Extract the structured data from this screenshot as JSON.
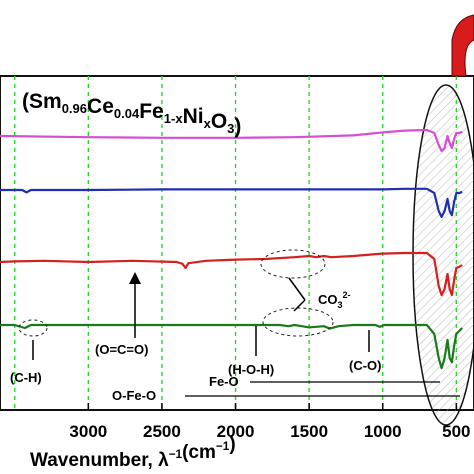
{
  "chart_data": {
    "type": "line",
    "title_parts": [
      {
        "t": "(Sm",
        "s": "n"
      },
      {
        "t": "0.96",
        "s": "sub"
      },
      {
        "t": "Ce",
        "s": "n"
      },
      {
        "t": "0.04",
        "s": "sub"
      },
      {
        "t": "Fe",
        "s": "n"
      },
      {
        "t": "1-x",
        "s": "sub"
      },
      {
        "t": "Ni",
        "s": "n"
      },
      {
        "t": "x",
        "s": "sub"
      },
      {
        "t": "O",
        "s": "n"
      },
      {
        "t": "3",
        "s": "sub"
      },
      {
        "t": ")",
        "s": "n"
      }
    ],
    "xlabel_parts": [
      {
        "t": "Wavenumber, λ",
        "s": "n"
      },
      {
        "t": "−1",
        "s": "sup"
      },
      {
        "t": "(cm",
        "s": "n"
      },
      {
        "t": "−1",
        "s": "sup"
      },
      {
        "t": ")",
        "s": "n"
      }
    ],
    "x_ticks": [
      3000,
      2500,
      2000,
      1500,
      1000,
      500
    ],
    "x_tick_labels": [
      "3000",
      "2500",
      "2000",
      "1500",
      "1000",
      "500"
    ],
    "xlim": [
      3600,
      380
    ],
    "gridlines_x": [
      3500,
      3000,
      2500,
      2000,
      1500,
      1000,
      500
    ],
    "grid": "vertical dashed green",
    "series": [
      {
        "color": "#d54ed5",
        "baseline": 0.12,
        "points": [
          [
            3600,
            0.1
          ],
          [
            3000,
            0.12
          ],
          [
            2500,
            0.13
          ],
          [
            2000,
            0.13
          ],
          [
            1600,
            0.12
          ],
          [
            1200,
            0.09
          ],
          [
            1000,
            0.04
          ],
          [
            850,
            0.01
          ],
          [
            700,
            0.0
          ],
          [
            650,
            0.05
          ],
          [
            620,
            0.25
          ],
          [
            600,
            0.35
          ],
          [
            580,
            0.3
          ],
          [
            560,
            0.1
          ],
          [
            545,
            0.22
          ],
          [
            530,
            0.3
          ],
          [
            515,
            0.15
          ],
          [
            500,
            0.05
          ],
          [
            480,
            0.05
          ],
          [
            460,
            0.03
          ]
        ]
      },
      {
        "color": "#1e2fb0",
        "baseline": 0.0,
        "points": [
          [
            3600,
            0.0
          ],
          [
            3450,
            0.0
          ],
          [
            3420,
            0.04
          ],
          [
            3390,
            0.0
          ],
          [
            3000,
            0.0
          ],
          [
            2500,
            -0.01
          ],
          [
            2000,
            -0.01
          ],
          [
            1500,
            -0.01
          ],
          [
            1000,
            -0.01
          ],
          [
            850,
            -0.02
          ],
          [
            700,
            -0.02
          ],
          [
            650,
            0.05
          ],
          [
            620,
            0.35
          ],
          [
            600,
            0.45
          ],
          [
            580,
            0.35
          ],
          [
            560,
            0.15
          ],
          [
            545,
            0.35
          ],
          [
            530,
            0.42
          ],
          [
            515,
            0.2
          ],
          [
            500,
            0.05
          ],
          [
            480,
            0.05
          ],
          [
            460,
            0.03
          ]
        ]
      },
      {
        "color": "#d62020",
        "baseline": 0.0,
        "points": [
          [
            3600,
            0.0
          ],
          [
            3500,
            -0.01
          ],
          [
            3300,
            -0.02
          ],
          [
            3000,
            0.0
          ],
          [
            2700,
            -0.02
          ],
          [
            2400,
            0.0
          ],
          [
            2360,
            0.03
          ],
          [
            2340,
            0.1
          ],
          [
            2320,
            0.02
          ],
          [
            2200,
            -0.02
          ],
          [
            2000,
            -0.04
          ],
          [
            1800,
            -0.05
          ],
          [
            1600,
            -0.08
          ],
          [
            1500,
            -0.1
          ],
          [
            1450,
            -0.08
          ],
          [
            1400,
            -0.1
          ],
          [
            1350,
            -0.08
          ],
          [
            1200,
            -0.1
          ],
          [
            1000,
            -0.14
          ],
          [
            850,
            -0.15
          ],
          [
            700,
            -0.15
          ],
          [
            650,
            -0.05
          ],
          [
            620,
            0.4
          ],
          [
            600,
            0.55
          ],
          [
            580,
            0.45
          ],
          [
            560,
            0.2
          ],
          [
            545,
            0.45
          ],
          [
            530,
            0.55
          ],
          [
            515,
            0.3
          ],
          [
            500,
            0.1
          ],
          [
            480,
            0.08
          ],
          [
            460,
            0.05
          ]
        ]
      },
      {
        "color": "#1a7a1a",
        "baseline": 0.0,
        "points": [
          [
            3600,
            0.0
          ],
          [
            3500,
            0.0
          ],
          [
            3430,
            0.05
          ],
          [
            3390,
            0.0
          ],
          [
            3000,
            0.0
          ],
          [
            2500,
            0.0
          ],
          [
            2000,
            0.0
          ],
          [
            1700,
            0.0
          ],
          [
            1640,
            0.02
          ],
          [
            1600,
            0.0
          ],
          [
            1550,
            0.02
          ],
          [
            1500,
            0.04
          ],
          [
            1450,
            0.03
          ],
          [
            1400,
            0.02
          ],
          [
            1360,
            0.06
          ],
          [
            1300,
            0.02
          ],
          [
            1200,
            0.0
          ],
          [
            1050,
            0.0
          ],
          [
            1020,
            0.03
          ],
          [
            990,
            0.0
          ],
          [
            850,
            0.0
          ],
          [
            700,
            0.0
          ],
          [
            650,
            0.15
          ],
          [
            620,
            0.55
          ],
          [
            600,
            0.72
          ],
          [
            580,
            0.55
          ],
          [
            560,
            0.25
          ],
          [
            545,
            0.55
          ],
          [
            530,
            0.62
          ],
          [
            515,
            0.35
          ],
          [
            500,
            0.15
          ],
          [
            480,
            0.1
          ],
          [
            460,
            0.05
          ]
        ]
      }
    ],
    "series_offsets_top": [
      130,
      190,
      262,
      325
    ],
    "series_amplitude": 60,
    "annotations": [
      {
        "text": "(O=C=O)",
        "x": 2350
      },
      {
        "text": "(C-H)",
        "x": 3430
      },
      {
        "text": "(H-O-H)",
        "x": 1640
      },
      {
        "text": "(C-O)",
        "x": 1010
      },
      {
        "text": "CO",
        "sub": "3",
        "sup": "2-"
      },
      {
        "text": "Fe-O"
      },
      {
        "text": "O-Fe-O"
      }
    ]
  }
}
